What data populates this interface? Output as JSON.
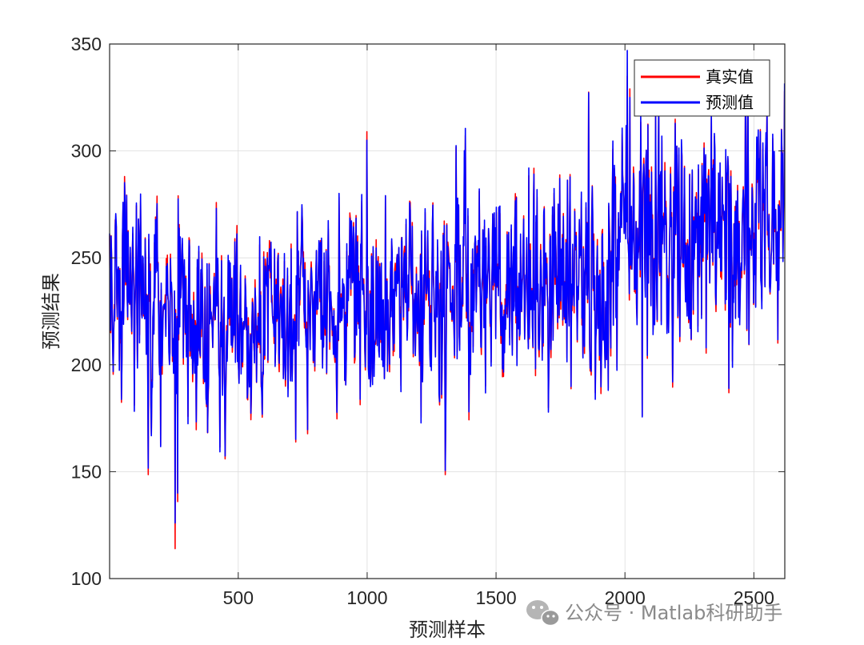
{
  "chart_data": {
    "type": "line",
    "title": "",
    "xlabel": "预测样本",
    "ylabel": "预测结果",
    "xlim": [
      1,
      2620
    ],
    "ylim": [
      100,
      350
    ],
    "xticks": [
      500,
      1000,
      1500,
      2000,
      2500
    ],
    "yticks": [
      100,
      150,
      200,
      250,
      300,
      350
    ],
    "xtick_labels": [
      "500",
      "1000",
      "1500",
      "2000",
      "2500"
    ],
    "ytick_labels": [
      "100",
      "150",
      "200",
      "250",
      "300",
      "350"
    ],
    "grid": true,
    "legend_position": "top-right",
    "sample_count": 2620,
    "series": [
      {
        "name": "真实值",
        "color": "#ff0000",
        "role": "actual"
      },
      {
        "name": "预测值",
        "color": "#0000ff",
        "role": "predicted"
      }
    ],
    "trend_points": [
      {
        "x": 1,
        "y": 240
      },
      {
        "x": 250,
        "y": 225
      },
      {
        "x": 500,
        "y": 222
      },
      {
        "x": 1000,
        "y": 228
      },
      {
        "x": 1500,
        "y": 238
      },
      {
        "x": 1900,
        "y": 242
      },
      {
        "x": 2000,
        "y": 262
      },
      {
        "x": 2300,
        "y": 255
      },
      {
        "x": 2620,
        "y": 260
      }
    ],
    "extremes": [
      {
        "x": 255,
        "y": 114,
        "series": "真实值"
      },
      {
        "x": 265,
        "y": 140,
        "series": "预测值"
      },
      {
        "x": 1000,
        "y": 305,
        "series": "预测值"
      },
      {
        "x": 2010,
        "y": 335,
        "series": "真实值"
      },
      {
        "x": 2020,
        "y": 325,
        "series": "预测值"
      }
    ]
  },
  "watermark": {
    "icon": "wechat-icon",
    "text": "公众号 · Matlab科研助手"
  }
}
